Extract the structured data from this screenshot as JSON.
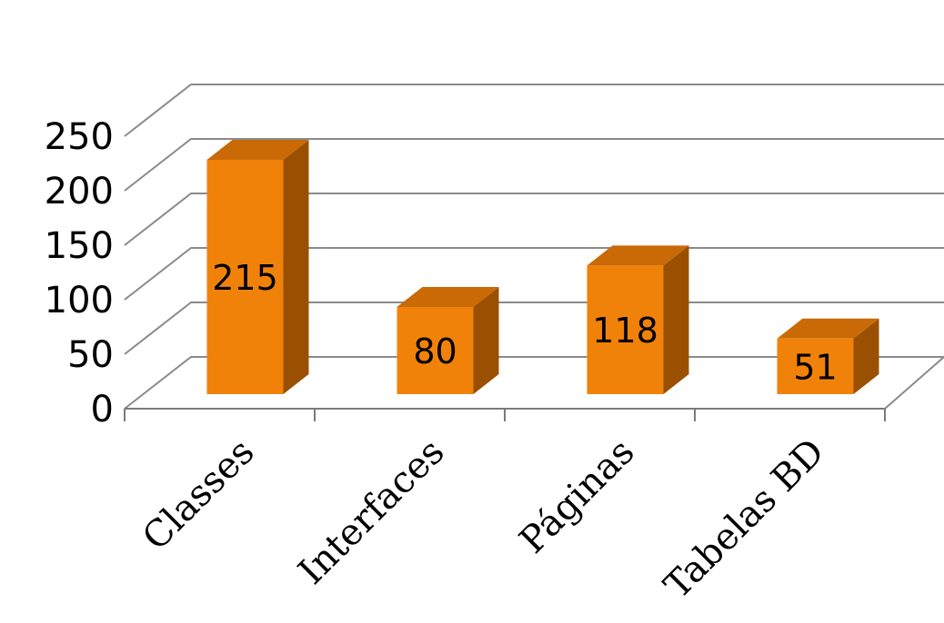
{
  "chart_data": {
    "type": "bar",
    "categories": [
      "Classes",
      "Interfaces",
      "Páginas",
      "Tabelas BD"
    ],
    "values": [
      215,
      80,
      118,
      51
    ],
    "data_labels": [
      "215",
      "80",
      "118",
      "51"
    ],
    "title": "",
    "xlabel": "",
    "ylabel": "",
    "ylim": [
      0,
      250
    ],
    "y_ticks": [
      "0",
      "50",
      "100",
      "150",
      "200",
      "250"
    ],
    "grid": true,
    "legend": "none",
    "style": "3d-column",
    "colors": {
      "bar_front": "#F0820A",
      "bar_top": "#C96A06",
      "bar_side": "#9A5000",
      "grid": "#8a8a8a"
    }
  }
}
